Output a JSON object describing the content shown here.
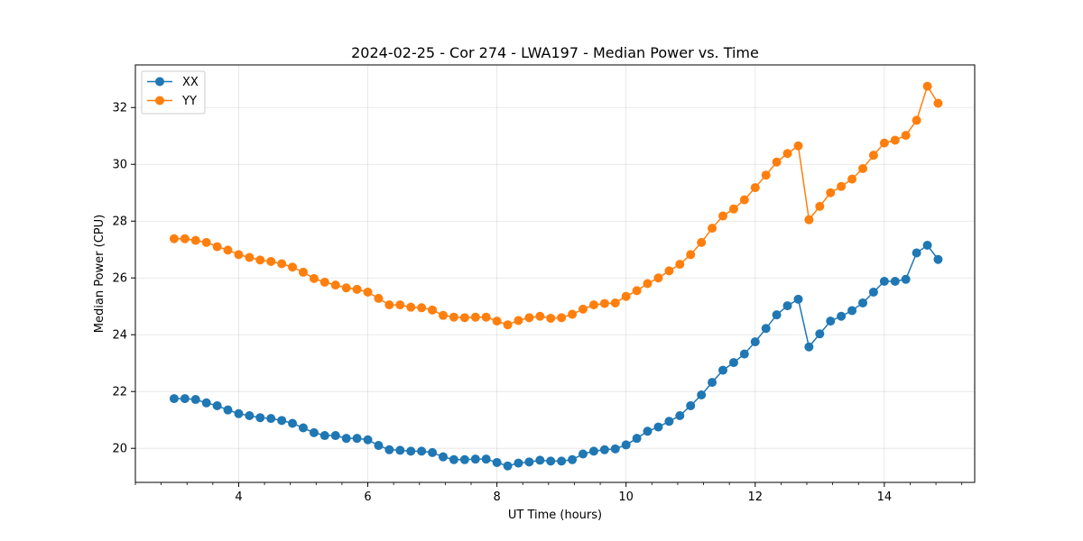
{
  "chart_data": {
    "type": "line",
    "title": "2024-02-25 - Cor 274 - LWA197 - Median Power vs. Time",
    "xlabel": "UT Time (hours)",
    "ylabel": "Median Power (CPU)",
    "xlim": [
      2.4,
      15.4
    ],
    "ylim": [
      18.8,
      33.5
    ],
    "xticks": [
      4,
      6,
      8,
      10,
      12,
      14
    ],
    "yticks": [
      20,
      22,
      24,
      26,
      28,
      30,
      32
    ],
    "xtick_labels": [
      "4",
      "6",
      "8",
      "10",
      "12",
      "14"
    ],
    "ytick_labels": [
      "20",
      "22",
      "24",
      "26",
      "28",
      "30",
      "32"
    ],
    "grid": true,
    "legend_position": "top-left",
    "x": [
      3.0,
      3.167,
      3.333,
      3.5,
      3.667,
      3.833,
      4.0,
      4.167,
      4.333,
      4.5,
      4.667,
      4.833,
      5.0,
      5.167,
      5.333,
      5.5,
      5.667,
      5.833,
      6.0,
      6.167,
      6.333,
      6.5,
      6.667,
      6.833,
      7.0,
      7.167,
      7.333,
      7.5,
      7.667,
      7.833,
      8.0,
      8.167,
      8.333,
      8.5,
      8.667,
      8.833,
      9.0,
      9.167,
      9.333,
      9.5,
      9.667,
      9.833,
      10.0,
      10.167,
      10.333,
      10.5,
      10.667,
      10.833,
      11.0,
      11.167,
      11.333,
      11.5,
      11.667,
      11.833,
      12.0,
      12.167,
      12.333,
      12.5,
      12.667,
      12.833,
      13.0,
      13.167,
      13.333,
      13.5,
      13.667,
      13.833,
      14.0,
      14.167,
      14.333,
      14.5,
      14.667,
      14.833
    ],
    "series": [
      {
        "name": "XX",
        "color": "#1f77b4",
        "values": [
          21.75,
          21.75,
          21.72,
          21.6,
          21.5,
          21.35,
          21.22,
          21.15,
          21.08,
          21.05,
          20.98,
          20.88,
          20.72,
          20.55,
          20.45,
          20.45,
          20.35,
          20.35,
          20.3,
          20.1,
          19.95,
          19.93,
          19.9,
          19.9,
          19.85,
          19.7,
          19.6,
          19.6,
          19.62,
          19.62,
          19.5,
          19.38,
          19.48,
          19.52,
          19.58,
          19.55,
          19.55,
          19.6,
          19.8,
          19.9,
          19.95,
          19.98,
          20.12,
          20.35,
          20.6,
          20.75,
          20.95,
          21.15,
          21.5,
          21.88,
          22.32,
          22.75,
          23.02,
          23.32,
          23.75,
          24.22,
          24.7,
          25.02,
          25.25,
          23.57,
          24.03,
          24.48,
          24.65,
          24.85,
          25.12,
          25.5,
          25.88,
          25.88,
          25.95,
          26.88,
          27.15,
          26.65
        ]
      },
      {
        "name": "YY",
        "color": "#ff7f0e",
        "values": [
          27.38,
          27.38,
          27.32,
          27.25,
          27.1,
          26.98,
          26.82,
          26.72,
          26.63,
          26.58,
          26.5,
          26.38,
          26.2,
          25.98,
          25.85,
          25.75,
          25.65,
          25.6,
          25.5,
          25.28,
          25.05,
          25.05,
          24.97,
          24.95,
          24.87,
          24.68,
          24.62,
          24.6,
          24.62,
          24.62,
          24.48,
          24.35,
          24.5,
          24.6,
          24.65,
          24.58,
          24.6,
          24.72,
          24.9,
          25.05,
          25.1,
          25.12,
          25.35,
          25.55,
          25.8,
          26.0,
          26.25,
          26.48,
          26.82,
          27.25,
          27.75,
          28.18,
          28.43,
          28.75,
          29.18,
          29.62,
          30.08,
          30.38,
          30.65,
          28.05,
          28.52,
          29.0,
          29.22,
          29.48,
          29.85,
          30.32,
          30.75,
          30.85,
          31.02,
          31.55,
          32.75,
          32.15
        ]
      }
    ]
  }
}
